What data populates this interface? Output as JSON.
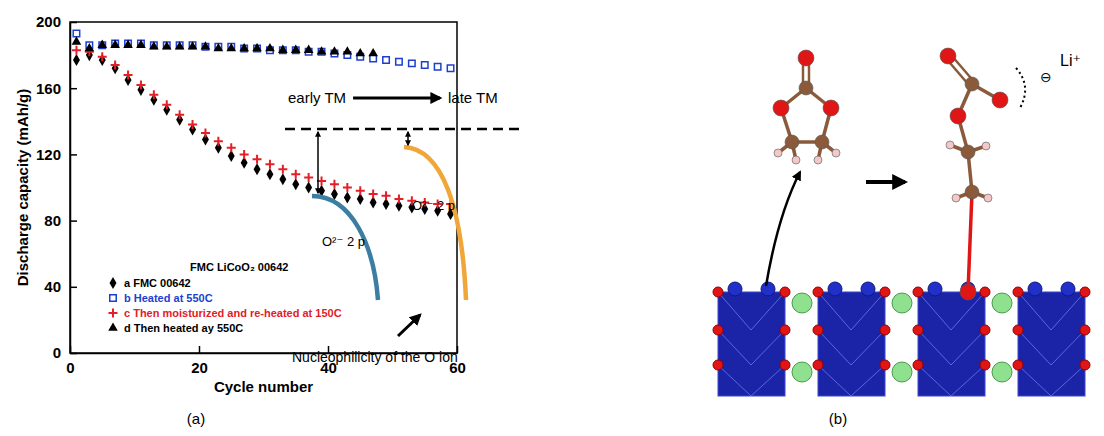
{
  "chart_data": {
    "type": "scatter",
    "x_label": "Cycle number",
    "y_label": "Discharge capacity (mAh/g)",
    "legend_title": "FMC LiCoO₂ 00642",
    "legend": "lower left",
    "x": [
      1,
      3,
      5,
      7,
      9,
      11,
      13,
      15,
      17,
      19,
      21,
      23,
      25,
      27,
      29,
      31,
      33,
      35,
      37,
      39,
      41,
      43,
      45,
      47,
      49,
      51,
      53,
      55,
      57,
      59
    ],
    "series": [
      {
        "name": "a FMC 00642",
        "color": "#000000",
        "marker": "diamond",
        "values": [
          177,
          180,
          177,
          172,
          165,
          159,
          153,
          147,
          141,
          135,
          129,
          124,
          119,
          115,
          111,
          108,
          105,
          102,
          100,
          98,
          96,
          94,
          93,
          91,
          90,
          89,
          88,
          87,
          86,
          84
        ]
      },
      {
        "name": "b Heated at 550C",
        "color": "#1c3fd0",
        "marker": "square-open",
        "values": [
          193,
          186,
          186,
          187,
          187,
          187,
          186,
          186,
          186,
          186,
          185,
          185,
          185,
          184,
          184,
          183,
          183,
          183,
          182,
          182,
          181,
          180,
          179,
          178,
          177,
          176,
          175,
          174,
          173,
          172
        ]
      },
      {
        "name": "c Then moisturized and re-heated at 150C",
        "color": "#e32027",
        "marker": "plus",
        "values": [
          183,
          182,
          179,
          174,
          168,
          162,
          156,
          150,
          144,
          138,
          133,
          128,
          124,
          120,
          117,
          114,
          111,
          108,
          106,
          104,
          102,
          100,
          98,
          96,
          95,
          93,
          92,
          91,
          90,
          90
        ]
      },
      {
        "name": "d Then heated ay 550C",
        "color": "#000000",
        "marker": "triangle",
        "values": [
          188,
          184,
          186,
          186,
          186,
          186,
          185,
          185,
          185,
          185,
          185,
          184,
          184,
          184,
          184,
          184,
          183,
          183,
          183,
          182,
          182,
          182,
          181,
          181,
          null,
          null,
          null,
          null,
          null,
          null
        ]
      }
    ],
    "xlim": [
      0,
      60
    ],
    "ylim": [
      0,
      200
    ],
    "xticks": [
      0,
      20,
      40,
      60
    ],
    "yticks": [
      0,
      40,
      80,
      120,
      160,
      200
    ],
    "grid": false
  },
  "panel_labels": [
    "(a)",
    "(b)"
  ],
  "diagram": {
    "trend": {
      "from": "early TM",
      "to": "late TM"
    },
    "bands": [
      {
        "label": "O²⁻ 2 p"
      },
      {
        "label": "O²⁻ 2 p"
      }
    ],
    "caption": "Nucleophilicity of the O ion",
    "charge": "⊖",
    "counter_ion": "Li⁺"
  }
}
